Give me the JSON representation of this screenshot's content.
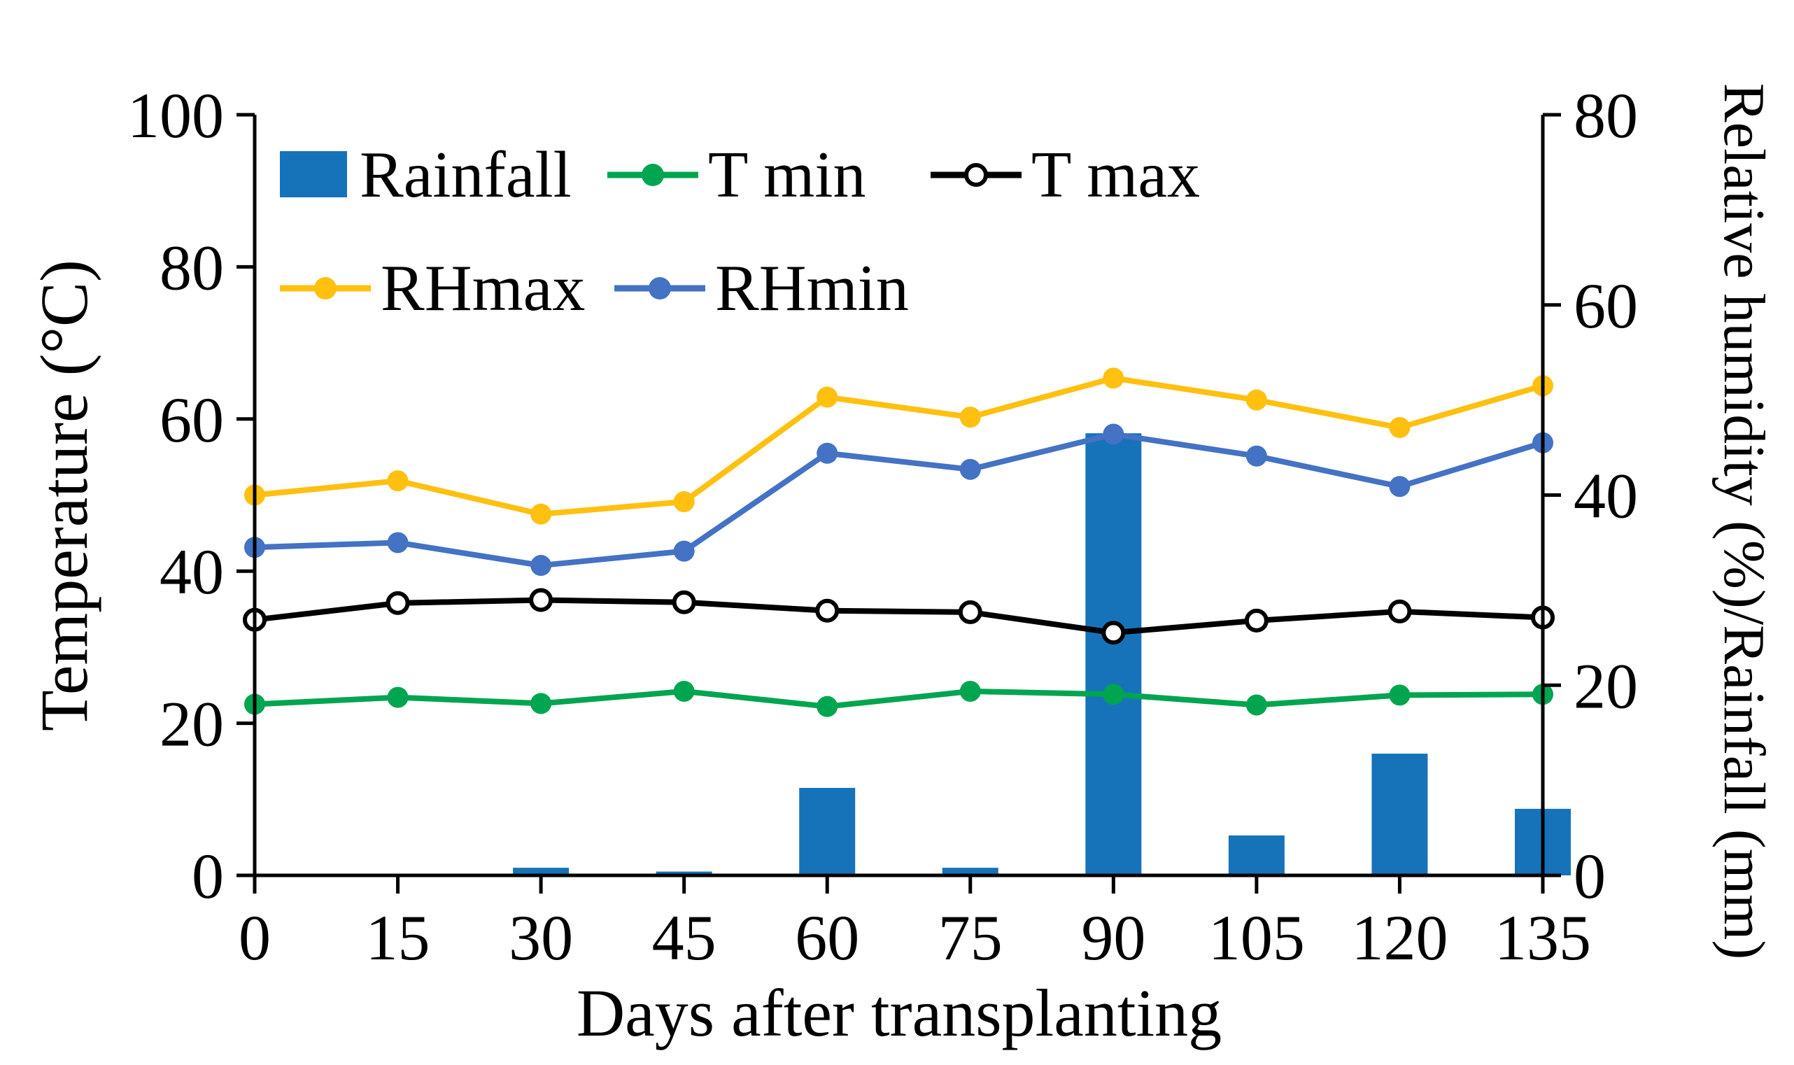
{
  "legend": {
    "items": [
      {
        "label": "Rainfall",
        "swatch": "bar"
      },
      {
        "label": "T min",
        "swatch": "line-filled-dot"
      },
      {
        "label": "T max",
        "swatch": "line-open-dot"
      },
      {
        "label": "RHmax",
        "swatch": "line-filled-dot"
      },
      {
        "label": "RHmin",
        "swatch": "line-filled-dot"
      }
    ],
    "position": "top-left-inside",
    "rows": [
      [
        "Rainfall",
        "T min",
        "T max"
      ],
      [
        "RHmax",
        "RHmin"
      ]
    ]
  },
  "chart_data": {
    "type": "composite-bar-line",
    "title": "",
    "x_categories": [
      0,
      15,
      30,
      45,
      60,
      75,
      90,
      105,
      120,
      135
    ],
    "xlabel": "Days after transplanting",
    "left_axis": {
      "label": "Temperature (°C)",
      "ticks": [
        0,
        20,
        40,
        60,
        80,
        100
      ],
      "range": [
        0,
        100
      ]
    },
    "right_axis": {
      "label": "Relative humidity (%)/Rainfall (mm)",
      "ticks": [
        0,
        20,
        40,
        60,
        80
      ],
      "range": [
        0,
        80
      ]
    },
    "grid": "off",
    "series": [
      {
        "name": "Rainfall",
        "type": "bar",
        "axis": "right",
        "color": "#1673B9",
        "values": [
          0,
          0,
          0.8,
          0.4,
          9.2,
          0.8,
          46.5,
          4.2,
          12.8,
          7.0
        ]
      },
      {
        "name": "T min",
        "type": "line",
        "axis": "left",
        "marker": "filled",
        "color": "#00A550",
        "values": [
          22.5,
          23.4,
          22.6,
          24.2,
          22.2,
          24.2,
          23.8,
          22.4,
          23.7,
          23.8
        ]
      },
      {
        "name": "T max",
        "type": "line",
        "axis": "left",
        "marker": "open",
        "color": "#000000",
        "values": [
          33.6,
          35.8,
          36.2,
          35.9,
          34.8,
          34.6,
          31.9,
          33.5,
          34.7,
          33.9
        ]
      },
      {
        "name": "RHmax",
        "type": "line",
        "axis": "right",
        "marker": "filled",
        "color": "#FFC010",
        "values": [
          40.0,
          41.5,
          38.0,
          39.3,
          50.3,
          48.2,
          52.3,
          50.0,
          47.1,
          51.5
        ]
      },
      {
        "name": "RHmin",
        "type": "line",
        "axis": "right",
        "marker": "filled",
        "color": "#4472C4",
        "values": [
          34.5,
          35.0,
          32.6,
          34.1,
          44.4,
          42.7,
          46.4,
          44.1,
          40.9,
          45.5
        ]
      }
    ]
  }
}
